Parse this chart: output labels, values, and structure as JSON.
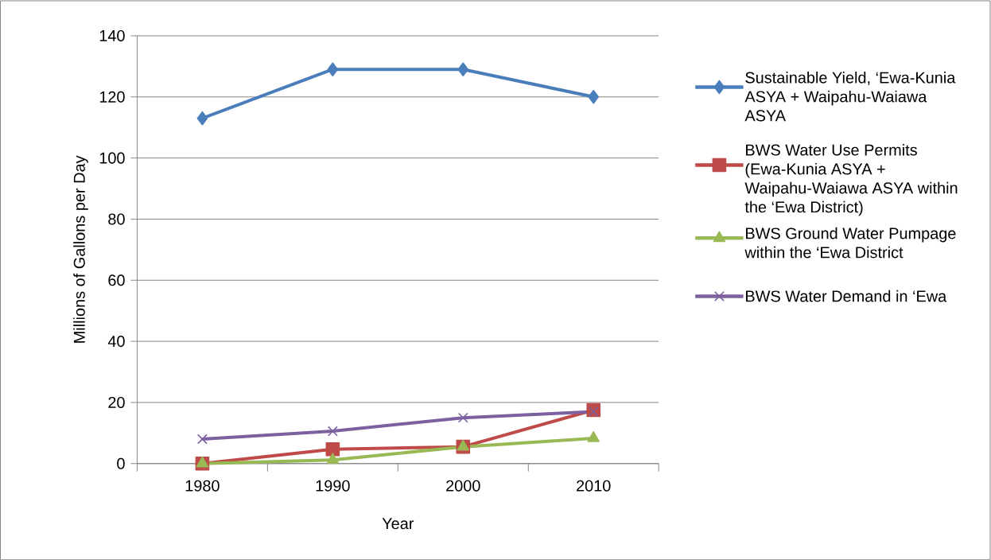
{
  "chart_data": {
    "type": "line",
    "xlabel": "Year",
    "ylabel": "Millions of Gallons per Day",
    "categories": [
      "1980",
      "1990",
      "2000",
      "2010"
    ],
    "series": [
      {
        "name": "Sustainable Yield, ‘Ewa-Kunia ASYA + Waipahu-Waiawa ASYA",
        "color": "#4a7ebb",
        "marker": "diamond",
        "values": [
          113,
          129,
          129,
          120
        ]
      },
      {
        "name": "BWS Water Use Permits (Ewa-Kunia ASYA + Waipahu-Waiawa ASYA within the ‘Ewa District)",
        "color": "#be4b48",
        "marker": "square",
        "values": [
          0,
          4.7,
          5.5,
          17.5
        ]
      },
      {
        "name": "BWS Ground Water Pumpage within the ‘Ewa District",
        "color": "#98b954",
        "marker": "triangle",
        "values": [
          0,
          1.2,
          5.5,
          8.3
        ]
      },
      {
        "name": "BWS Water Demand in ‘Ewa",
        "color": "#7d60a0",
        "marker": "cross",
        "values": [
          8,
          10.6,
          15,
          17
        ]
      }
    ],
    "ylim": [
      0,
      140
    ],
    "yticks": [
      0,
      20,
      40,
      60,
      80,
      100,
      120,
      140
    ],
    "grid": "y",
    "legend": "right",
    "line_style": "solid"
  }
}
